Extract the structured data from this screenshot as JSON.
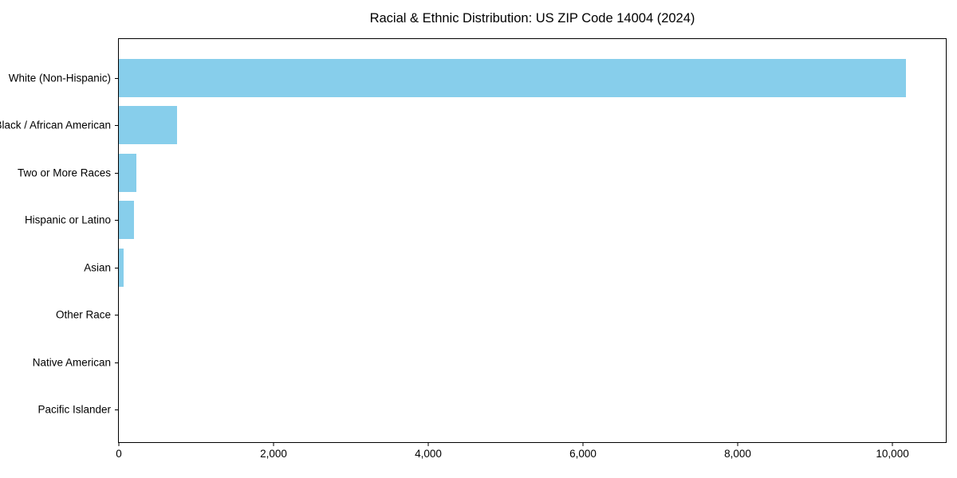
{
  "chart_data": {
    "type": "bar",
    "orientation": "horizontal",
    "title": "Racial & Ethnic Distribution: US ZIP Code 14004 (2024)",
    "categories": [
      "White (Non-Hispanic)",
      "Black / African American",
      "Two or More Races",
      "Hispanic or Latino",
      "Asian",
      "Other Race",
      "Native American",
      "Pacific Islander"
    ],
    "values": [
      10170,
      750,
      230,
      195,
      60,
      0,
      0,
      0
    ],
    "xlabel": "",
    "ylabel": "",
    "xlim": [
      0,
      10690
    ],
    "x_ticks": [
      0,
      2000,
      4000,
      6000,
      8000,
      10000
    ],
    "x_tick_labels": [
      "0",
      "2,000",
      "4,000",
      "6,000",
      "8,000",
      "10,000"
    ],
    "bar_color": "#87CEEB",
    "axis_color": "#000000",
    "background_color": "#ffffff",
    "grid": false,
    "legend": null
  }
}
